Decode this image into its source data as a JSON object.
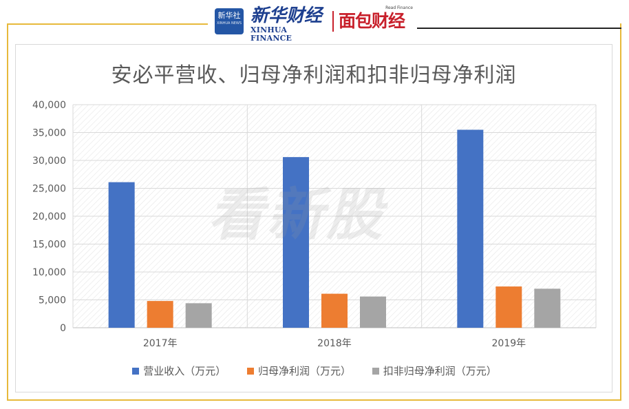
{
  "header": {
    "logo_xinhua_news_cn": "新华社",
    "logo_xinhua_news_en": "XINHUA NEWS",
    "logo_xinhua_finance_cn": "新华财经",
    "logo_xinhua_finance_en": "XINHUA FINANCE",
    "logo_read_finance_en": "Read Finance",
    "logo_read_finance_cn": "面包财经"
  },
  "watermark": "看新股",
  "colors": {
    "frame": "#e7b93a",
    "series1": "#4472c4",
    "series2": "#ed7d31",
    "series3": "#a5a5a5"
  },
  "chart_data": {
    "type": "bar",
    "title": "安必平营收、归母净利润和扣非归母净利润",
    "categories": [
      "2017年",
      "2018年",
      "2019年"
    ],
    "series": [
      {
        "name": "营业收入（万元）",
        "values": [
          26100,
          30600,
          35500
        ]
      },
      {
        "name": "归母净利润（万元）",
        "values": [
          4800,
          6100,
          7400
        ]
      },
      {
        "name": "扣非归母净利润（万元）",
        "values": [
          4400,
          5600,
          7000
        ]
      }
    ],
    "y_ticks": [
      "0",
      "5,000",
      "10,000",
      "15,000",
      "20,000",
      "25,000",
      "30,000",
      "35,000",
      "40,000"
    ],
    "ylim": [
      0,
      40000
    ],
    "grid": true,
    "legend_position": "bottom"
  }
}
